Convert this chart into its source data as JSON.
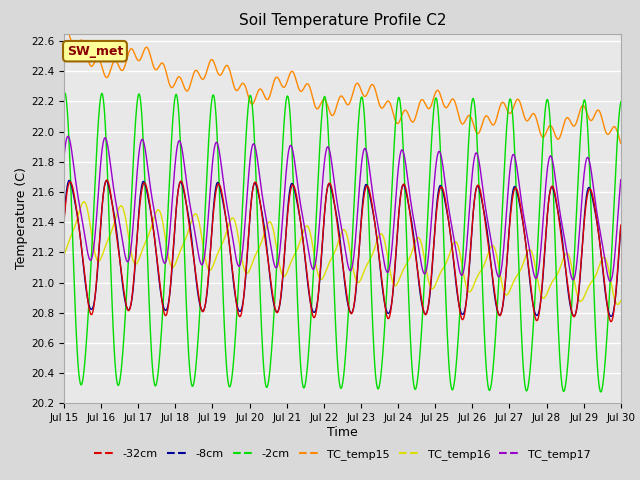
{
  "title": "Soil Temperature Profile C2",
  "xlabel": "Time",
  "ylabel": "Temperature (C)",
  "ylim": [
    20.2,
    22.65
  ],
  "xlim": [
    0,
    15
  ],
  "yticks": [
    20.2,
    20.4,
    20.6,
    20.8,
    21.0,
    21.2,
    21.4,
    21.6,
    21.8,
    22.0,
    22.2,
    22.4,
    22.6
  ],
  "xtick_labels": [
    "Jul 15",
    "Jul 16",
    "Jul 17",
    "Jul 18",
    "Jul 19",
    "Jul 20",
    "Jul 21",
    "Jul 22",
    "Jul 23",
    "Jul 24",
    "Jul 25",
    "Jul 26",
    "Jul 27",
    "Jul 28",
    "Jul 29",
    "Jul 30"
  ],
  "xtick_positions": [
    0,
    1,
    2,
    3,
    4,
    5,
    6,
    7,
    8,
    9,
    10,
    11,
    12,
    13,
    14,
    15
  ],
  "legend_labels": [
    "-32cm",
    "-8cm",
    "-2cm",
    "TC_temp15",
    "TC_temp16",
    "TC_temp17"
  ],
  "line_colors": [
    "#dd0000",
    "#000099",
    "#00dd00",
    "#ff8800",
    "#dddd00",
    "#9900cc"
  ],
  "line_widths": [
    1.0,
    1.0,
    1.0,
    1.0,
    1.0,
    1.0
  ],
  "fig_bg_color": "#d9d9d9",
  "plot_bg_color": "#e8e8e8",
  "sw_met_label": "SW_met",
  "sw_met_bg": "#ffff99",
  "sw_met_border": "#996600",
  "title_fontsize": 11,
  "annotation_fontsize": 9
}
